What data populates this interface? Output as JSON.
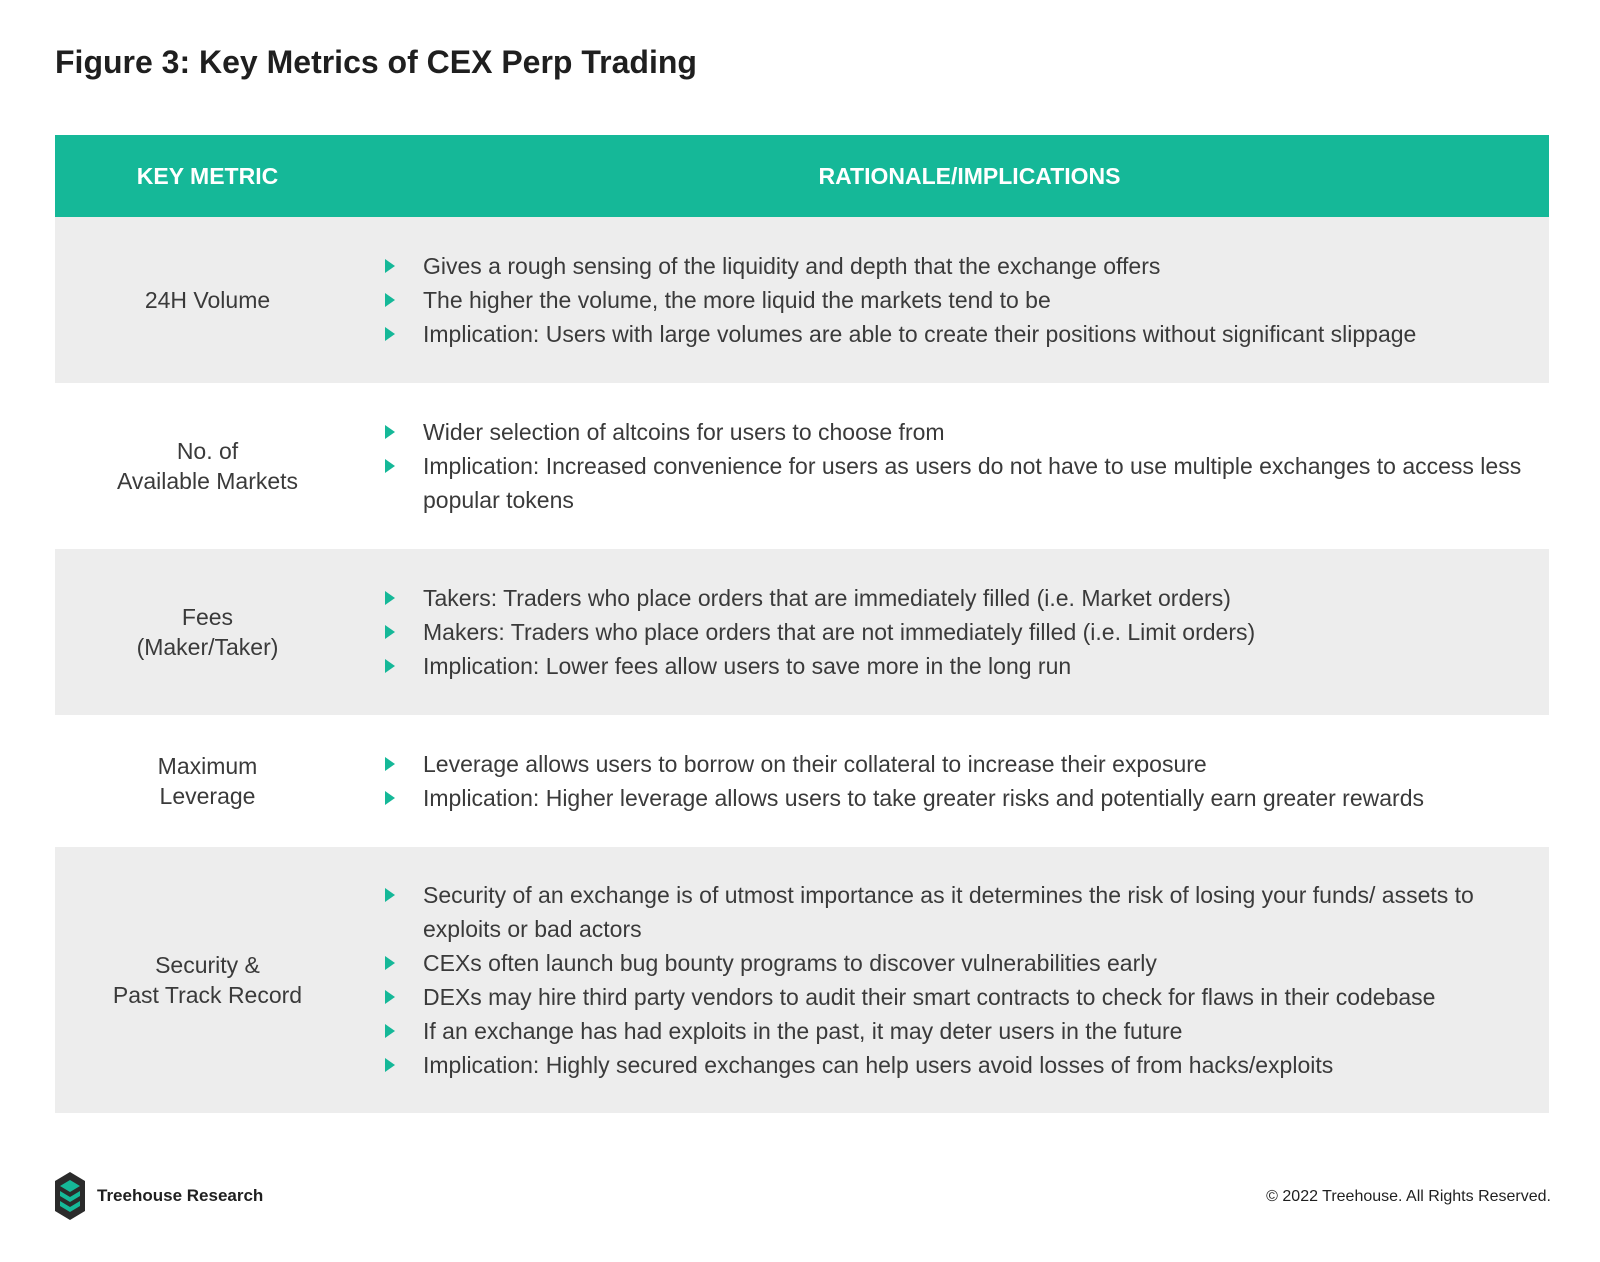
{
  "title": "Figure 3: Key Metrics of CEX Perp Trading",
  "table": {
    "headers": [
      "KEY METRIC",
      "RATIONALE/IMPLICATIONS"
    ],
    "rows": [
      {
        "metric": [
          "24H Volume"
        ],
        "shaded": true,
        "items": [
          "Gives a rough sensing of the liquidity and depth that the exchange offers",
          "The higher the volume, the more liquid the markets tend to be",
          "Implication: Users with large volumes are able to create their positions without significant slippage"
        ]
      },
      {
        "metric": [
          "No. of",
          "Available Markets"
        ],
        "shaded": false,
        "items": [
          "Wider selection of altcoins for users to choose from",
          "Implication: Increased convenience for users as users do not have to use multiple exchanges to access less popular tokens"
        ]
      },
      {
        "metric": [
          "Fees",
          "(Maker/Taker)"
        ],
        "shaded": true,
        "items": [
          "Takers: Traders who place orders that are immediately filled (i.e. Market orders)",
          "Makers: Traders who place orders that are not immediately filled (i.e. Limit orders)",
          "Implication: Lower fees allow users to save more in the long run"
        ]
      },
      {
        "metric": [
          "Maximum",
          "Leverage"
        ],
        "shaded": false,
        "items": [
          "Leverage allows users to borrow on their collateral to increase their exposure",
          "Implication: Higher leverage allows users to take greater risks and potentially earn greater rewards"
        ]
      },
      {
        "metric": [
          "Security &",
          "Past Track Record"
        ],
        "shaded": true,
        "items": [
          "Security of an exchange is of utmost importance as it determines the risk of losing your funds/ assets to exploits or bad actors",
          "CEXs often launch bug bounty programs to discover vulnerabilities early",
          "DEXs may hire third party vendors to audit their smart contracts to check for flaws in their codebase",
          "If an exchange has had exploits in the past, it may deter users in the future",
          "Implication: Highly secured exchanges can help users avoid losses of from hacks/exploits"
        ]
      }
    ]
  },
  "footer": {
    "brand": "Treehouse Research",
    "copyright": "© 2022 Treehouse. All Rights Reserved.",
    "logo_icon": "treehouse-logo-icon"
  },
  "colors": {
    "accent": "#15b898",
    "shade": "#ededed",
    "logo_dark": "#2b2b2b"
  }
}
